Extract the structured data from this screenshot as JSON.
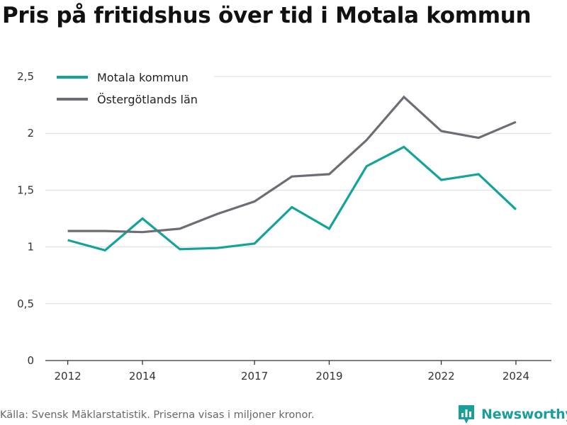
{
  "title": "Pris på fritidshus över tid i Motala kommun",
  "source": "Källa: Svensk Mäklarstatistik. Priserna visas i miljoner kronor.",
  "brand": {
    "name": "Newsworthy",
    "icon": "bar-chart-logo-icon",
    "color": "#1a9e98"
  },
  "chart_data": {
    "type": "line",
    "title": "Pris på fritidshus över tid i Motala kommun",
    "xlabel": "",
    "ylabel": "",
    "x": [
      2012,
      2013,
      2014,
      2015,
      2016,
      2017,
      2018,
      2019,
      2020,
      2021,
      2022,
      2023,
      2024
    ],
    "x_tick_values": [
      2012,
      2014,
      2017,
      2019,
      2022,
      2024
    ],
    "x_tick_labels": [
      "2012",
      "2014",
      "2017",
      "2019",
      "2022",
      "2024"
    ],
    "y_tick_values": [
      0,
      0.5,
      1,
      1.5,
      2,
      2.5
    ],
    "y_tick_labels": [
      "0",
      "0,5",
      "1",
      "1,5",
      "2",
      "2,5"
    ],
    "ylim": [
      0,
      2.5
    ],
    "grid": "horizontal",
    "legend_position": "top-left",
    "series": [
      {
        "name": "Motala kommun",
        "color": "#13a39a",
        "values": [
          1.06,
          0.97,
          1.25,
          0.98,
          0.99,
          1.03,
          1.35,
          1.16,
          1.71,
          1.88,
          1.59,
          1.64,
          1.33
        ]
      },
      {
        "name": "Östergötlands län",
        "color": "#6d6e75",
        "values": [
          1.14,
          1.14,
          1.13,
          1.16,
          1.29,
          1.4,
          1.62,
          1.64,
          1.94,
          2.32,
          2.02,
          1.96,
          2.1
        ]
      }
    ]
  }
}
